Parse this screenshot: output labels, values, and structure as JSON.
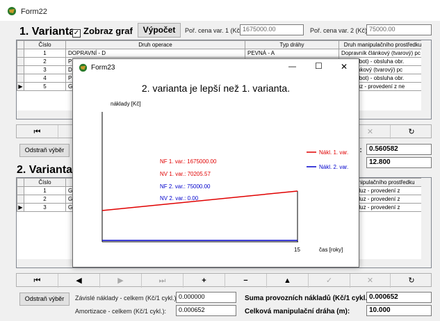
{
  "main": {
    "title": "Form22",
    "var1_heading": "1. Varianta",
    "show_graph_label": "Zobraz graf",
    "show_graph_checked": "✓",
    "calc_button": "Výpočet",
    "price1_label": "Poř. cena var. 1 (Kč):",
    "price1_value": "1675000.00",
    "price2_label": "Poř. cena var. 2 (Kč):",
    "price2_value": "75000.00",
    "var2_heading": "2. Varianta"
  },
  "grid1": {
    "columns": [
      "Číslo",
      "Druh operace",
      "Typ dráhy",
      "Druh manipulačního prostředku"
    ],
    "rows": [
      [
        "1",
        "DOPRAVNÍ - D",
        "PEVNÁ - A",
        "Dopravník článkový (tvarový) pc"
      ],
      [
        "2",
        "PŘ",
        "",
        "átor (robot) - obsluha obr."
      ],
      [
        "3",
        "DO",
        "",
        "ník článkový (tvarový) pc"
      ],
      [
        "4",
        "PŘ",
        "",
        "átor (robot) - obsluha obr."
      ],
      [
        "5",
        "GR",
        "",
        "ční skluz - provedení z ne"
      ]
    ]
  },
  "middle": {
    "remove_button": "Odstraň výběr",
    "value1": "0.560582",
    "value2": "12.800",
    "value1_label_tail": "):"
  },
  "grid2": {
    "columns": [
      "Číslo",
      "",
      "manipulačního prostředku"
    ],
    "rows": [
      [
        "1",
        "GR",
        "ační skluz - provedení z"
      ],
      [
        "2",
        "GR",
        "ační skluz - provedení z"
      ],
      [
        "3",
        "GR",
        "ační skluz - provedení z"
      ]
    ]
  },
  "navbar": {
    "buttons": [
      "⏮",
      "◀",
      "▶",
      "⏭",
      "+",
      "−",
      "▲",
      "✓",
      "✕",
      "↻"
    ]
  },
  "bottom": {
    "remove_button": "Odstraň výběr",
    "dependent_label": "Závislé náklady - celkem (Kč/1 cykl.):",
    "dependent_value": "0.000000",
    "amort_label": "Amortizace - celkem (Kč/1 cykl.):",
    "amort_value": "0.000652",
    "sum_label": "Suma provozních nákladů (Kč/1 cykl.):",
    "sum_value": "0.000652",
    "dist_label": "Celková manipulační dráha (m):",
    "dist_value": "10.000"
  },
  "dialog": {
    "title": "Form23",
    "minimize": "—",
    "maximize": "☐",
    "close": "✕",
    "headline": "2. varianta je lepší než 1. varianta.",
    "ylabel": "náklady [Kč]",
    "xlabel": "čas [roky]",
    "x_tick": "15",
    "nf1": "NF 1. var.: 1675000.00",
    "nv1": "NV 1. var.: 70205.57",
    "nf2": "NF 2. var.: 75000.00",
    "nv2": "NV 2. var.: 0.00",
    "legend1": "Nákl. 1. var.",
    "legend2": "Nákl. 2. var.",
    "color1": "#e00000",
    "color2": "#0000cc"
  }
}
